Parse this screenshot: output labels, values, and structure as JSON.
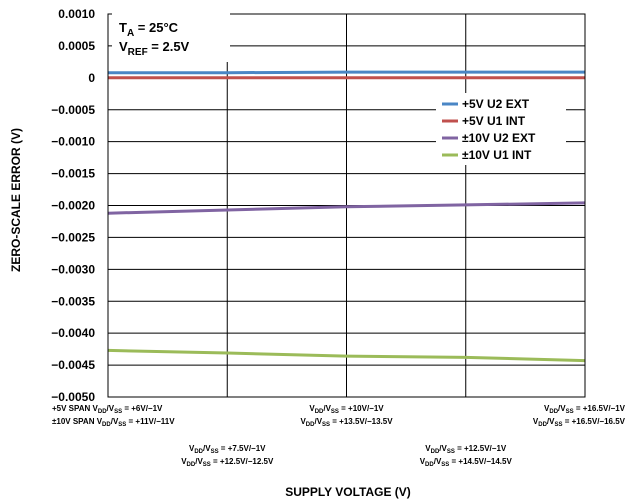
{
  "chart_data": {
    "type": "line",
    "ylabel": "ZERO-SCALE ERROR (V)",
    "xlabel": "SUPPLY VOLTAGE (V)",
    "ylim": [
      -0.005,
      0.001
    ],
    "yticks": [
      "0.0010",
      "0.0005",
      "0",
      "−0.0005",
      "−0.0010",
      "−0.0015",
      "−0.0020",
      "−0.0025",
      "−0.0030",
      "−0.0035",
      "−0.0040",
      "−0.0045",
      "−0.0050"
    ],
    "grid": true,
    "legend_position": "right",
    "annotation": {
      "ta_main": "T",
      "ta_sub": "A",
      "ta_rest": " = 25°C",
      "vref_main": "V",
      "vref_sub": "REF",
      "vref_rest": " = 2.5V"
    },
    "x_tick_labels": [
      {
        "lines": [
          [
            [
              "+5V SPAN V",
              ""
            ],
            [
              "DD",
              "sub"
            ],
            [
              "/V",
              ""
            ],
            [
              "SS",
              "sub"
            ],
            [
              " = +6V/−1V",
              ""
            ]
          ],
          [
            [
              "±10V SPAN V",
              ""
            ],
            [
              "DD",
              "sub"
            ],
            [
              "/V",
              ""
            ],
            [
              "SS",
              "sub"
            ],
            [
              " = +11V/−11V",
              ""
            ]
          ]
        ]
      },
      {
        "lines": [
          [
            [
              "V",
              ""
            ],
            [
              "DD",
              "sub"
            ],
            [
              "/V",
              ""
            ],
            [
              "SS",
              "sub"
            ],
            [
              " = +7.5V/−1V",
              ""
            ]
          ],
          [
            [
              "V",
              ""
            ],
            [
              "DD",
              "sub"
            ],
            [
              "/V",
              ""
            ],
            [
              "SS",
              "sub"
            ],
            [
              " = +12.5V/−12.5V",
              ""
            ]
          ]
        ]
      },
      {
        "lines": [
          [
            [
              "V",
              ""
            ],
            [
              "DD",
              "sub"
            ],
            [
              "/V",
              ""
            ],
            [
              "SS",
              "sub"
            ],
            [
              " = +10V/−1V",
              ""
            ]
          ],
          [
            [
              "V",
              ""
            ],
            [
              "DD",
              "sub"
            ],
            [
              "/V",
              ""
            ],
            [
              "SS",
              "sub"
            ],
            [
              " = +13.5V/−13.5V",
              ""
            ]
          ]
        ]
      },
      {
        "lines": [
          [
            [
              "V",
              ""
            ],
            [
              "DD",
              "sub"
            ],
            [
              "/V",
              ""
            ],
            [
              "SS",
              "sub"
            ],
            [
              " = +12.5V/−1V",
              ""
            ]
          ],
          [
            [
              "V",
              ""
            ],
            [
              "DD",
              "sub"
            ],
            [
              "/V",
              ""
            ],
            [
              "SS",
              "sub"
            ],
            [
              " = +14.5V/−14.5V",
              ""
            ]
          ]
        ]
      },
      {
        "lines": [
          [
            [
              "V",
              ""
            ],
            [
              "DD",
              "sub"
            ],
            [
              "/V",
              ""
            ],
            [
              "SS",
              "sub"
            ],
            [
              " = +16.5V/−1V",
              ""
            ]
          ],
          [
            [
              "V",
              ""
            ],
            [
              "DD",
              "sub"
            ],
            [
              "/V",
              ""
            ],
            [
              "SS",
              "sub"
            ],
            [
              " = +16.5V/−16.5V",
              ""
            ]
          ]
        ]
      }
    ],
    "series": [
      {
        "name": "+5V U2 EXT",
        "color": "#4a86c5",
        "values": [
          8e-05,
          8e-05,
          9e-05,
          9e-05,
          9e-05
        ]
      },
      {
        "name": "+5V U1 INT",
        "color": "#c0504d",
        "values": [
          0.0,
          0.0,
          0.0,
          0.0,
          0.0
        ]
      },
      {
        "name": "±10V U2 EXT",
        "color": "#8064a2",
        "values": [
          -0.00212,
          -0.00207,
          -0.00202,
          -0.00199,
          -0.00196
        ]
      },
      {
        "name": "±10V U1 INT",
        "color": "#9bbb59",
        "values": [
          -0.00427,
          -0.00431,
          -0.00436,
          -0.00438,
          -0.00443
        ]
      }
    ]
  }
}
